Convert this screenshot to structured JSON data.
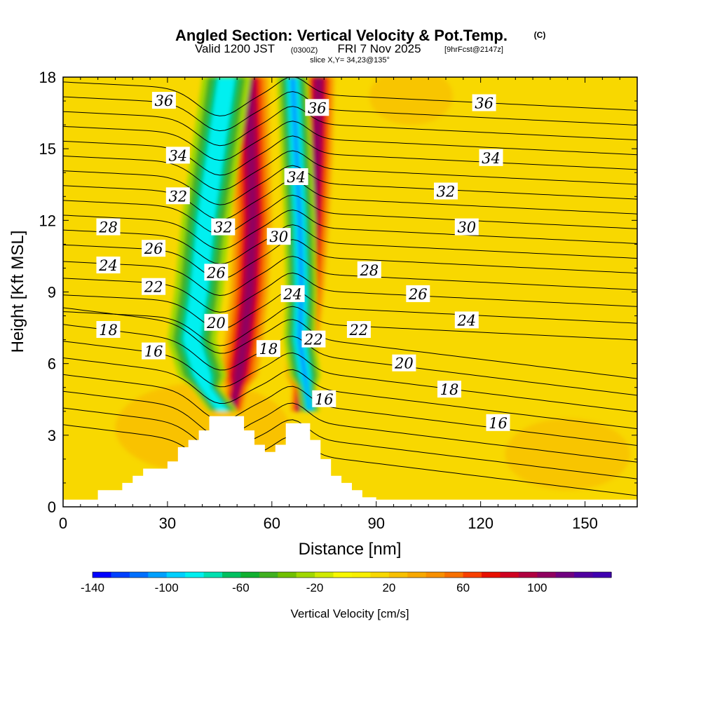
{
  "chart_data": {
    "type": "heatmap",
    "title": "Angled Section: Vertical Velocity & Pot.Temp.",
    "title_unit": "(C)",
    "subtitle_main": "Valid 1200 JST",
    "subtitle_z": "(0300Z)",
    "subtitle_date": "FRI 7 Nov 2025",
    "subtitle_fcst": "[9hrFcst@2147z]",
    "slice_text": "slice X,Y= 34,23@135°",
    "xlabel": "Distance [nm]",
    "ylabel": "Height [Kft MSL]",
    "xlim": [
      0,
      165
    ],
    "ylim": [
      0,
      18
    ],
    "x_ticks": [
      "0",
      "30",
      "60",
      "90",
      "120",
      "150"
    ],
    "y_ticks": [
      "0",
      "3",
      "6",
      "9",
      "12",
      "15",
      "18"
    ],
    "colorbar": {
      "label": "Vertical Velocity [cm/s]",
      "min": -140,
      "max": 140,
      "step": 10,
      "tick_labels": [
        "-140",
        "-100",
        "-60",
        "-20",
        "20",
        "60",
        "100"
      ],
      "colors": [
        "#0000ff",
        "#0040ff",
        "#0070ff",
        "#00a0ff",
        "#00d0ff",
        "#00f0f0",
        "#00e0b0",
        "#00c060",
        "#10b030",
        "#40b020",
        "#70c000",
        "#a0d800",
        "#d0ea00",
        "#f8f800",
        "#f8f000",
        "#f8d800",
        "#f8c000",
        "#f8a800",
        "#f89000",
        "#f87000",
        "#f84000",
        "#e81000",
        "#d00020",
        "#b00040",
        "#900060",
        "#700080",
        "#5000a0",
        "#4000b0"
      ]
    },
    "terrain_kft": [
      [
        0,
        0.3
      ],
      [
        10,
        0.3
      ],
      [
        10,
        0.7
      ],
      [
        17,
        0.7
      ],
      [
        17,
        1.0
      ],
      [
        20,
        1.0
      ],
      [
        20,
        1.3
      ],
      [
        23,
        1.3
      ],
      [
        23,
        1.6
      ],
      [
        30,
        1.6
      ],
      [
        30,
        1.9
      ],
      [
        33,
        1.9
      ],
      [
        33,
        2.5
      ],
      [
        36,
        2.5
      ],
      [
        36,
        2.8
      ],
      [
        39,
        2.8
      ],
      [
        39,
        3.2
      ],
      [
        42,
        3.2
      ],
      [
        42,
        3.8
      ],
      [
        52,
        3.8
      ],
      [
        52,
        3.2
      ],
      [
        55,
        3.2
      ],
      [
        55,
        2.6
      ],
      [
        58,
        2.6
      ],
      [
        58,
        2.3
      ],
      [
        61,
        2.3
      ],
      [
        61,
        2.6
      ],
      [
        64,
        2.6
      ],
      [
        64,
        3.5
      ],
      [
        71,
        3.5
      ],
      [
        71,
        2.8
      ],
      [
        74,
        2.8
      ],
      [
        74,
        2.0
      ],
      [
        77,
        2.0
      ],
      [
        77,
        1.3
      ],
      [
        80,
        1.3
      ],
      [
        80,
        1.0
      ],
      [
        83,
        1.0
      ],
      [
        83,
        0.7
      ],
      [
        86,
        0.7
      ],
      [
        86,
        0.4
      ],
      [
        90,
        0.4
      ],
      [
        90,
        0.3
      ],
      [
        165,
        0.3
      ]
    ],
    "vv_features": [
      {
        "name": "updraft-west-core",
        "x": [
          53.5,
          54,
          54.5,
          53.5,
          52,
          50,
          48.5
        ],
        "y": [
          18,
          15,
          12,
          9,
          7,
          5,
          4
        ],
        "value": 100
      },
      {
        "name": "downdraft-west-core",
        "x": [
          47,
          44,
          41,
          39,
          37,
          41,
          46
        ],
        "y": [
          18,
          15,
          12,
          9,
          7,
          5,
          4
        ],
        "value": -90
      },
      {
        "name": "updraft-east-core",
        "x": [
          73.5,
          73,
          72,
          70.5,
          69,
          68.5,
          68
        ],
        "y": [
          18,
          15,
          12,
          9,
          7,
          5,
          4
        ],
        "value": 100
      },
      {
        "name": "downdraft-east-core",
        "x": [
          66,
          67,
          68,
          68.5,
          68,
          70,
          71
        ],
        "y": [
          18,
          15,
          12,
          9,
          7,
          5,
          4
        ],
        "value": -110
      }
    ],
    "theta_contours": [
      {
        "value": 16,
        "labels": [
          {
            "x": 26,
            "y": 6.5
          },
          {
            "x": 75,
            "y": 4.5
          },
          {
            "x": 125,
            "y": 3.5
          }
        ]
      },
      {
        "value": 18,
        "labels": [
          {
            "x": 13,
            "y": 7.4
          },
          {
            "x": 59,
            "y": 6.6
          },
          {
            "x": 111,
            "y": 4.9
          }
        ]
      },
      {
        "value": 20,
        "labels": [
          {
            "x": 44,
            "y": 7.7
          },
          {
            "x": 98,
            "y": 6.0
          }
        ]
      },
      {
        "value": 22,
        "labels": [
          {
            "x": 26,
            "y": 9.2
          },
          {
            "x": 72,
            "y": 7.0
          },
          {
            "x": 85,
            "y": 7.4
          }
        ]
      },
      {
        "value": 24,
        "labels": [
          {
            "x": 13,
            "y": 10.1
          },
          {
            "x": 66,
            "y": 8.9
          },
          {
            "x": 116,
            "y": 7.8
          }
        ]
      },
      {
        "value": 26,
        "labels": [
          {
            "x": 26,
            "y": 10.8
          },
          {
            "x": 44,
            "y": 9.8
          },
          {
            "x": 102,
            "y": 8.9
          }
        ]
      },
      {
        "value": 28,
        "labels": [
          {
            "x": 13,
            "y": 11.7
          },
          {
            "x": 88,
            "y": 9.9
          }
        ]
      },
      {
        "value": 30,
        "labels": [
          {
            "x": 62,
            "y": 11.3
          },
          {
            "x": 116,
            "y": 11.7
          }
        ]
      },
      {
        "value": 32,
        "labels": [
          {
            "x": 33,
            "y": 13.0
          },
          {
            "x": 46,
            "y": 11.7
          },
          {
            "x": 110,
            "y": 13.2
          }
        ]
      },
      {
        "value": 34,
        "labels": [
          {
            "x": 33,
            "y": 14.7
          },
          {
            "x": 67,
            "y": 13.8
          },
          {
            "x": 123,
            "y": 14.6
          }
        ]
      },
      {
        "value": 36,
        "labels": [
          {
            "x": 29,
            "y": 17.0
          },
          {
            "x": 73,
            "y": 16.7
          },
          {
            "x": 121,
            "y": 16.9
          }
        ]
      }
    ]
  }
}
